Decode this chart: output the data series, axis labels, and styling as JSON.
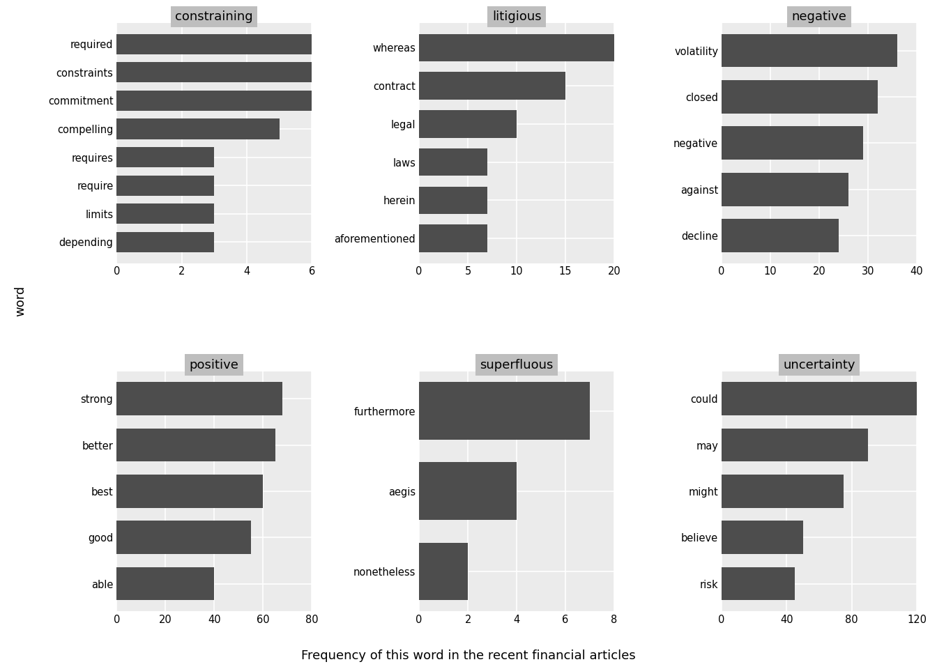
{
  "subplots": [
    {
      "title": "constraining",
      "words": [
        "depending",
        "limits",
        "require",
        "requires",
        "compelling",
        "commitment",
        "constraints",
        "required"
      ],
      "values": [
        3,
        3,
        3,
        3,
        5,
        6,
        6,
        6
      ],
      "xlim": [
        0,
        6
      ],
      "xticks": [
        0,
        2,
        4,
        6
      ]
    },
    {
      "title": "litigious",
      "words": [
        "aforementioned",
        "herein",
        "laws",
        "legal",
        "contract",
        "whereas"
      ],
      "values": [
        7,
        7,
        7,
        10,
        15,
        20
      ],
      "xlim": [
        0,
        20
      ],
      "xticks": [
        0,
        5,
        10,
        15,
        20
      ]
    },
    {
      "title": "negative",
      "words": [
        "decline",
        "against",
        "negative",
        "closed",
        "volatility"
      ],
      "values": [
        24,
        26,
        29,
        32,
        36
      ],
      "xlim": [
        0,
        40
      ],
      "xticks": [
        0,
        10,
        20,
        30,
        40
      ]
    },
    {
      "title": "positive",
      "words": [
        "able",
        "good",
        "best",
        "better",
        "strong"
      ],
      "values": [
        40,
        55,
        60,
        65,
        68
      ],
      "xlim": [
        0,
        80
      ],
      "xticks": [
        0,
        20,
        40,
        60,
        80
      ]
    },
    {
      "title": "superfluous",
      "words": [
        "nonetheless",
        "aegis",
        "furthermore"
      ],
      "values": [
        2,
        4,
        7
      ],
      "xlim": [
        0,
        8
      ],
      "xticks": [
        0,
        2,
        4,
        6,
        8
      ]
    },
    {
      "title": "uncertainty",
      "words": [
        "risk",
        "believe",
        "might",
        "may",
        "could"
      ],
      "values": [
        45,
        50,
        75,
        90,
        120
      ],
      "xlim": [
        0,
        120
      ],
      "xticks": [
        0,
        40,
        80,
        120
      ]
    }
  ],
  "bar_color": "#4d4d4d",
  "background_color": "#ffffff",
  "panel_bg_color": "#ebebeb",
  "title_bg_color": "#bebebe",
  "grid_color": "#ffffff",
  "xlabel": "Frequency of this word in the recent financial articles",
  "ylabel": "word",
  "title_fontsize": 13,
  "label_fontsize": 13,
  "tick_fontsize": 10.5
}
